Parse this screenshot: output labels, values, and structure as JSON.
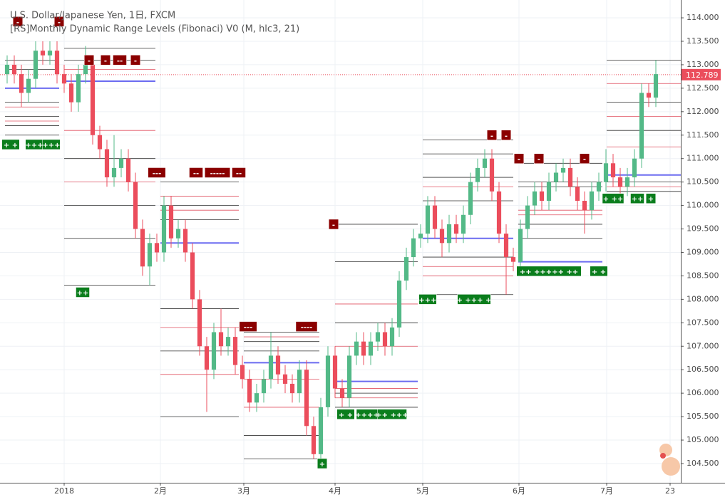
{
  "chart_data": {
    "type": "candlestick",
    "title": "U.S. Dollar/Japanese Yen, 1日, FXCM",
    "subtitle": "[RS]Monthly Dynamic Range Levels (Fibonaci) V0 (M, hlc3, 21)",
    "up_color": "#53b987",
    "down_color": "#eb4d5c",
    "grid": true,
    "xlim": [
      -0.3,
      94.5
    ],
    "ylim": [
      104.09,
      114.38
    ],
    "xticks": [
      {
        "value": 8,
        "label": "2018"
      },
      {
        "value": 21.5,
        "label": "2月"
      },
      {
        "value": 33.2,
        "label": "3月"
      },
      {
        "value": 46,
        "label": "4月"
      },
      {
        "value": 58.3,
        "label": "5月"
      },
      {
        "value": 71.8,
        "label": "6月"
      },
      {
        "value": 84.1,
        "label": "7月"
      },
      {
        "value": 93,
        "label": "23"
      }
    ],
    "yticks": [
      {
        "value": 104.5,
        "label": "104.500"
      },
      {
        "value": 105,
        "label": "105.000"
      },
      {
        "value": 105.5,
        "label": "105.500"
      },
      {
        "value": 106,
        "label": "106.000"
      },
      {
        "value": 106.5,
        "label": "106.500"
      },
      {
        "value": 107,
        "label": "107.000"
      },
      {
        "value": 107.5,
        "label": "107.500"
      },
      {
        "value": 108,
        "label": "108.000"
      },
      {
        "value": 108.5,
        "label": "108.500"
      },
      {
        "value": 109,
        "label": "109.000"
      },
      {
        "value": 109.5,
        "label": "109.500"
      },
      {
        "value": 110,
        "label": "110.000"
      },
      {
        "value": 110.5,
        "label": "110.500"
      },
      {
        "value": 111,
        "label": "111.000"
      },
      {
        "value": 111.5,
        "label": "111.500"
      },
      {
        "value": 112,
        "label": "112.000"
      },
      {
        "value": 112.5,
        "label": "112.500"
      },
      {
        "value": 113,
        "label": "113.000"
      },
      {
        "value": 113.5,
        "label": "113.500"
      },
      {
        "value": 114,
        "label": "114.000"
      }
    ],
    "last_price": 112.789,
    "last_price_color": "#eb4d5c",
    "open": [
      112.8,
      113.0,
      112.8,
      112.4,
      112.7,
      113.3,
      113.2,
      113.3,
      112.8,
      112.6,
      112.2,
      112.8,
      113.0,
      111.5,
      111.2,
      110.6,
      110.8,
      111.0,
      110.5,
      109.5,
      108.7,
      109.2,
      109.0,
      110.0,
      109.3,
      109.5,
      109.0,
      108.0,
      107.0,
      106.5,
      107.3,
      107.0,
      107.2,
      106.6,
      106.3,
      105.8,
      106.0,
      106.3,
      106.8,
      106.4,
      106.2,
      106.0,
      106.5,
      105.3,
      104.7,
      105.7,
      106.8,
      106.1,
      105.9,
      106.8,
      107.1,
      106.8,
      107.1,
      107.3,
      107.0,
      107.4,
      108.4,
      108.9,
      109.3,
      109.4,
      110.0,
      109.5,
      109.2,
      109.6,
      109.4,
      109.8,
      110.5,
      110.8,
      111.0,
      110.3,
      109.4,
      108.9,
      108.8,
      109.5,
      110.0,
      110.3,
      110.1,
      110.5,
      110.7,
      110.8,
      110.4,
      110.1,
      109.9,
      110.3,
      110.5,
      110.9,
      110.6,
      110.4,
      110.6,
      111.0,
      112.4,
      112.3
    ],
    "high": [
      113.2,
      113.2,
      113.0,
      112.9,
      113.5,
      113.5,
      113.5,
      113.5,
      113.0,
      112.8,
      113.0,
      113.4,
      113.2,
      111.7,
      111.4,
      111.5,
      111.2,
      111.2,
      110.7,
      109.7,
      109.4,
      109.4,
      110.2,
      110.2,
      109.7,
      109.7,
      109.2,
      108.2,
      107.2,
      107.5,
      107.8,
      107.4,
      107.4,
      106.8,
      106.5,
      106.2,
      106.5,
      107.3,
      107.0,
      106.6,
      106.4,
      106.7,
      106.7,
      105.5,
      105.9,
      107.0,
      107.0,
      106.3,
      107.0,
      107.3,
      107.3,
      107.3,
      107.5,
      107.5,
      107.6,
      108.6,
      109.1,
      109.5,
      109.6,
      110.2,
      110.2,
      109.7,
      109.8,
      109.8,
      110.0,
      110.7,
      111.0,
      111.2,
      111.2,
      110.5,
      109.6,
      109.1,
      109.7,
      110.2,
      110.5,
      110.5,
      110.7,
      110.9,
      111.0,
      111.0,
      110.6,
      110.3,
      110.5,
      110.7,
      111.2,
      111.1,
      110.8,
      110.8,
      111.2,
      112.6,
      112.6,
      113.1
    ],
    "low": [
      112.6,
      112.6,
      112.1,
      112.2,
      112.5,
      113.0,
      113.0,
      112.6,
      112.4,
      112.0,
      112.0,
      112.6,
      111.3,
      111.0,
      110.4,
      110.4,
      110.6,
      110.3,
      109.3,
      108.5,
      108.3,
      108.8,
      108.8,
      109.1,
      109.1,
      108.8,
      107.8,
      106.8,
      105.6,
      106.3,
      106.8,
      106.8,
      106.4,
      106.1,
      105.6,
      105.6,
      105.8,
      106.1,
      106.2,
      106.0,
      105.8,
      105.8,
      105.1,
      104.6,
      104.6,
      105.5,
      105.9,
      105.7,
      105.7,
      106.6,
      106.6,
      106.6,
      106.9,
      106.8,
      106.8,
      107.2,
      108.2,
      108.7,
      109.1,
      109.2,
      109.3,
      108.9,
      109.0,
      109.2,
      109.2,
      109.6,
      110.3,
      110.6,
      110.1,
      109.2,
      108.1,
      108.6,
      108.6,
      109.3,
      109.8,
      109.9,
      109.9,
      110.3,
      110.5,
      110.2,
      109.9,
      109.4,
      109.7,
      110.1,
      110.3,
      110.4,
      110.2,
      110.2,
      110.4,
      110.8,
      112.1,
      112.1
    ],
    "close": [
      113.0,
      112.8,
      112.4,
      112.7,
      113.3,
      113.2,
      113.3,
      112.8,
      112.6,
      112.2,
      112.8,
      113.0,
      111.5,
      111.2,
      110.6,
      110.8,
      111.0,
      110.5,
      109.5,
      108.7,
      109.2,
      109.0,
      110.0,
      109.3,
      109.5,
      109.0,
      108.0,
      107.0,
      106.5,
      107.3,
      107.0,
      107.2,
      106.6,
      106.3,
      105.8,
      106.0,
      106.3,
      106.8,
      106.4,
      106.2,
      106.0,
      106.5,
      105.3,
      104.7,
      105.7,
      106.8,
      106.1,
      105.9,
      106.8,
      107.1,
      106.8,
      107.1,
      107.3,
      107.0,
      107.4,
      108.4,
      108.9,
      109.3,
      109.4,
      110.0,
      109.5,
      109.2,
      109.6,
      109.4,
      109.8,
      110.5,
      110.8,
      111.0,
      110.3,
      109.4,
      108.9,
      108.8,
      109.5,
      110.0,
      110.3,
      110.1,
      110.5,
      110.7,
      110.8,
      110.4,
      110.1,
      109.9,
      110.3,
      110.5,
      110.9,
      110.6,
      110.4,
      110.6,
      111.0,
      112.4,
      112.3,
      112.8
    ],
    "level_colors": {
      "pivot": "#6b6bf0",
      "black": "#333333",
      "red": "#e05060"
    },
    "levels": [
      {
        "x0": -0.3,
        "x1": 7.3,
        "pivot": 112.5,
        "black": [
          113.1,
          112.9,
          112.2,
          111.9,
          111.7,
          111.5
        ],
        "red": [
          112.1,
          111.8
        ]
      },
      {
        "x0": 8,
        "x1": 20.8,
        "pivot": 112.65,
        "black": [
          113.35,
          113.1,
          111.0,
          110.0,
          109.3,
          108.3
        ],
        "red": [
          112.9,
          111.6,
          110.5
        ]
      },
      {
        "x0": 21.5,
        "x1": 32.5,
        "pivot": 109.2,
        "black": [
          110.5,
          110.0,
          109.7,
          107.8,
          106.9,
          105.5
        ],
        "red": [
          110.2,
          109.9,
          107.4,
          106.4
        ]
      },
      {
        "x0": 33.2,
        "x1": 43.8,
        "pivot": 106.65,
        "black": [
          107.3,
          107.1,
          106.9,
          105.1,
          104.6
        ],
        "red": [
          107.2,
          106.3,
          105.7
        ]
      },
      {
        "x0": 46,
        "x1": 57.6,
        "pivot": 106.25,
        "black": [
          109.6,
          108.8,
          107.5,
          106.0,
          105.7
        ],
        "red": [
          107.9,
          107.0,
          106.1,
          105.9
        ]
      },
      {
        "x0": 58.3,
        "x1": 71,
        "pivot": 109.3,
        "black": [
          111.4,
          111.1,
          110.6,
          110.1,
          108.9,
          108.1
        ],
        "red": [
          110.4,
          108.7,
          108.5
        ]
      },
      {
        "x0": 71.7,
        "x1": 83.5,
        "pivot": 108.8,
        "black": [
          110.9,
          110.5,
          110.4,
          109.6,
          109.3
        ],
        "red": [
          109.9,
          109.8
        ]
      },
      {
        "x0": 84.1,
        "x1": 94.5,
        "pivot": 110.65,
        "black": [
          113.1,
          112.2,
          111.6,
          110.5,
          110.3
        ],
        "red": [
          112.6,
          111.9,
          111.25,
          110.4
        ]
      }
    ],
    "marker_colors": {
      "sell": "#8b0000",
      "buy": "#0a7d1c"
    },
    "markers": [
      {
        "x": 1.5,
        "y": 113.92,
        "text": "-",
        "kind": "sell"
      },
      {
        "x": 7.3,
        "y": 113.92,
        "text": "-",
        "kind": "sell"
      },
      {
        "x": 11.5,
        "y": 113.1,
        "text": "-",
        "kind": "sell"
      },
      {
        "x": 13.8,
        "y": 113.1,
        "text": "-",
        "kind": "sell"
      },
      {
        "x": 15.8,
        "y": 113.1,
        "text": "--",
        "kind": "sell"
      },
      {
        "x": 18,
        "y": 113.1,
        "text": "-",
        "kind": "sell"
      },
      {
        "x": 21,
        "y": 110.7,
        "text": "---",
        "kind": "sell"
      },
      {
        "x": 26.5,
        "y": 110.7,
        "text": "--",
        "kind": "sell"
      },
      {
        "x": 29.5,
        "y": 110.7,
        "text": "-----",
        "kind": "sell"
      },
      {
        "x": 32.5,
        "y": 110.7,
        "text": "--",
        "kind": "sell"
      },
      {
        "x": 33.8,
        "y": 107.42,
        "text": "---",
        "kind": "sell"
      },
      {
        "x": 42,
        "y": 107.42,
        "text": "----",
        "kind": "sell"
      },
      {
        "x": 45.8,
        "y": 109.6,
        "text": "-",
        "kind": "sell"
      },
      {
        "x": 68,
        "y": 111.5,
        "text": "-",
        "kind": "sell"
      },
      {
        "x": 70,
        "y": 111.5,
        "text": "-",
        "kind": "sell"
      },
      {
        "x": 71.8,
        "y": 111.0,
        "text": "-",
        "kind": "sell"
      },
      {
        "x": 74.6,
        "y": 111.0,
        "text": "-",
        "kind": "sell"
      },
      {
        "x": 81,
        "y": 111.0,
        "text": "-",
        "kind": "sell"
      },
      {
        "x": 0.5,
        "y": 111.3,
        "text": "+ +",
        "kind": "buy"
      },
      {
        "x": 3.8,
        "y": 111.3,
        "text": "+++",
        "kind": "buy"
      },
      {
        "x": 6.2,
        "y": 111.3,
        "text": "+++",
        "kind": "buy"
      },
      {
        "x": 10.6,
        "y": 108.15,
        "text": "++",
        "kind": "buy"
      },
      {
        "x": 44.2,
        "y": 104.5,
        "text": "+",
        "kind": "buy"
      },
      {
        "x": 47.5,
        "y": 105.55,
        "text": "+ +",
        "kind": "buy"
      },
      {
        "x": 50.5,
        "y": 105.55,
        "text": "++++",
        "kind": "buy"
      },
      {
        "x": 54,
        "y": 105.55,
        "text": "++ +++",
        "kind": "buy"
      },
      {
        "x": 59,
        "y": 108.0,
        "text": "+++",
        "kind": "buy"
      },
      {
        "x": 65.5,
        "y": 108.0,
        "text": "+ +++ +",
        "kind": "buy"
      },
      {
        "x": 76,
        "y": 108.6,
        "text": "+ ++ +++++ ++ +",
        "kind": "buy"
      },
      {
        "x": 83,
        "y": 108.6,
        "text": "+ +",
        "kind": "buy"
      },
      {
        "x": 85,
        "y": 110.15,
        "text": "+ ++",
        "kind": "buy"
      },
      {
        "x": 88.4,
        "y": 110.15,
        "text": "++",
        "kind": "buy"
      },
      {
        "x": 90.3,
        "y": 110.15,
        "text": "+",
        "kind": "buy"
      }
    ]
  }
}
